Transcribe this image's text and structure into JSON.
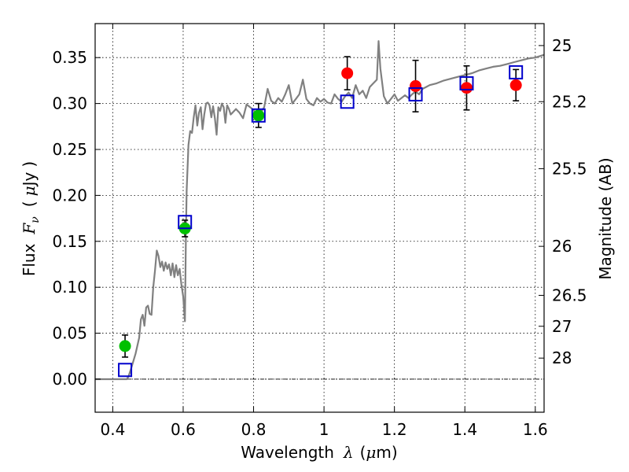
{
  "chart_data": {
    "type": "scatter",
    "title": "",
    "xlabel": {
      "prefix": "Wavelength",
      "symbol": "λ",
      "unit_open": "(",
      "unit_mu": "μ",
      "unit_rest": "m)"
    },
    "ylabel": {
      "prefix": "Flux",
      "symbol": "F",
      "subscript": "ν",
      "unit_open": "(",
      "unit_mu": "μ",
      "unit_rest": "Jy",
      "unit_close": ")"
    },
    "y2label": "Magnitude (AB)",
    "xlim": [
      0.35,
      1.625
    ],
    "ylim": [
      -0.036,
      0.387
    ],
    "grid": true,
    "x_ticks": [
      {
        "value": 0.4,
        "label": "0.4"
      },
      {
        "value": 0.6,
        "label": "0.6"
      },
      {
        "value": 0.8,
        "label": "0.8"
      },
      {
        "value": 1.0,
        "label": "1"
      },
      {
        "value": 1.2,
        "label": "1.2"
      },
      {
        "value": 1.4,
        "label": "1.4"
      },
      {
        "value": 1.6,
        "label": "1.6"
      }
    ],
    "y_ticks": [
      {
        "value": 0.0,
        "label": "0.00"
      },
      {
        "value": 0.05,
        "label": "0.05"
      },
      {
        "value": 0.1,
        "label": "0.10"
      },
      {
        "value": 0.15,
        "label": "0.15"
      },
      {
        "value": 0.2,
        "label": "0.20"
      },
      {
        "value": 0.25,
        "label": "0.25"
      },
      {
        "value": 0.3,
        "label": "0.30"
      },
      {
        "value": 0.35,
        "label": "0.35"
      }
    ],
    "y2_ticks": [
      {
        "magnitude": 25,
        "label": "25"
      },
      {
        "magnitude": 25.2,
        "label": "25.2"
      },
      {
        "magnitude": 25.5,
        "label": "25.5"
      },
      {
        "magnitude": 26,
        "label": "26"
      },
      {
        "magnitude": 26.5,
        "label": "26.5"
      },
      {
        "magnitude": 27,
        "label": "27"
      },
      {
        "magnitude": 28,
        "label": "28"
      }
    ],
    "model_spectrum": {
      "color": "#808080",
      "points": [
        [
          0.35,
          0.0
        ],
        [
          0.44,
          0.0
        ],
        [
          0.445,
          0.003
        ],
        [
          0.455,
          0.015
        ],
        [
          0.465,
          0.028
        ],
        [
          0.475,
          0.045
        ],
        [
          0.48,
          0.065
        ],
        [
          0.485,
          0.07
        ],
        [
          0.49,
          0.058
        ],
        [
          0.495,
          0.078
        ],
        [
          0.5,
          0.08
        ],
        [
          0.505,
          0.071
        ],
        [
          0.51,
          0.07
        ],
        [
          0.515,
          0.1
        ],
        [
          0.52,
          0.118
        ],
        [
          0.525,
          0.14
        ],
        [
          0.53,
          0.134
        ],
        [
          0.535,
          0.122
        ],
        [
          0.54,
          0.128
        ],
        [
          0.545,
          0.118
        ],
        [
          0.55,
          0.127
        ],
        [
          0.555,
          0.12
        ],
        [
          0.56,
          0.125
        ],
        [
          0.565,
          0.113
        ],
        [
          0.57,
          0.126
        ],
        [
          0.575,
          0.111
        ],
        [
          0.58,
          0.124
        ],
        [
          0.585,
          0.113
        ],
        [
          0.59,
          0.12
        ],
        [
          0.595,
          0.103
        ],
        [
          0.6,
          0.09
        ],
        [
          0.605,
          0.063
        ],
        [
          0.608,
          0.16
        ],
        [
          0.61,
          0.205
        ],
        [
          0.615,
          0.255
        ],
        [
          0.62,
          0.27
        ],
        [
          0.625,
          0.268
        ],
        [
          0.63,
          0.285
        ],
        [
          0.635,
          0.298
        ],
        [
          0.64,
          0.276
        ],
        [
          0.645,
          0.29
        ],
        [
          0.65,
          0.296
        ],
        [
          0.655,
          0.272
        ],
        [
          0.66,
          0.288
        ],
        [
          0.665,
          0.3
        ],
        [
          0.67,
          0.301
        ],
        [
          0.675,
          0.298
        ],
        [
          0.68,
          0.285
        ],
        [
          0.685,
          0.297
        ],
        [
          0.69,
          0.284
        ],
        [
          0.695,
          0.266
        ],
        [
          0.7,
          0.296
        ],
        [
          0.705,
          0.292
        ],
        [
          0.71,
          0.3
        ],
        [
          0.715,
          0.296
        ],
        [
          0.72,
          0.279
        ],
        [
          0.725,
          0.298
        ],
        [
          0.73,
          0.294
        ],
        [
          0.735,
          0.288
        ],
        [
          0.74,
          0.29
        ],
        [
          0.75,
          0.294
        ],
        [
          0.76,
          0.29
        ],
        [
          0.77,
          0.284
        ],
        [
          0.78,
          0.299
        ],
        [
          0.79,
          0.296
        ],
        [
          0.8,
          0.293
        ],
        [
          0.81,
          0.286
        ],
        [
          0.82,
          0.29
        ],
        [
          0.83,
          0.296
        ],
        [
          0.84,
          0.316
        ],
        [
          0.85,
          0.303
        ],
        [
          0.86,
          0.3
        ],
        [
          0.87,
          0.306
        ],
        [
          0.88,
          0.302
        ],
        [
          0.89,
          0.31
        ],
        [
          0.9,
          0.32
        ],
        [
          0.91,
          0.3
        ],
        [
          0.92,
          0.305
        ],
        [
          0.93,
          0.31
        ],
        [
          0.94,
          0.326
        ],
        [
          0.95,
          0.305
        ],
        [
          0.96,
          0.3
        ],
        [
          0.97,
          0.298
        ],
        [
          0.98,
          0.306
        ],
        [
          0.99,
          0.302
        ],
        [
          1.0,
          0.305
        ],
        [
          1.01,
          0.301
        ],
        [
          1.02,
          0.3
        ],
        [
          1.03,
          0.31
        ],
        [
          1.04,
          0.305
        ],
        [
          1.05,
          0.302
        ],
        [
          1.06,
          0.308
        ],
        [
          1.07,
          0.312
        ],
        [
          1.08,
          0.306
        ],
        [
          1.09,
          0.32
        ],
        [
          1.1,
          0.31
        ],
        [
          1.11,
          0.314
        ],
        [
          1.12,
          0.306
        ],
        [
          1.13,
          0.318
        ],
        [
          1.14,
          0.322
        ],
        [
          1.15,
          0.326
        ],
        [
          1.155,
          0.368
        ],
        [
          1.16,
          0.338
        ],
        [
          1.17,
          0.308
        ],
        [
          1.18,
          0.3
        ],
        [
          1.19,
          0.305
        ],
        [
          1.2,
          0.31
        ],
        [
          1.21,
          0.303
        ],
        [
          1.22,
          0.306
        ],
        [
          1.23,
          0.309
        ],
        [
          1.24,
          0.306
        ],
        [
          1.25,
          0.31
        ],
        [
          1.26,
          0.313
        ],
        [
          1.27,
          0.31
        ],
        [
          1.28,
          0.316
        ],
        [
          1.29,
          0.318
        ],
        [
          1.3,
          0.32
        ],
        [
          1.32,
          0.322
        ],
        [
          1.34,
          0.325
        ],
        [
          1.36,
          0.327
        ],
        [
          1.38,
          0.329
        ],
        [
          1.4,
          0.331
        ],
        [
          1.42,
          0.333
        ],
        [
          1.44,
          0.336
        ],
        [
          1.46,
          0.338
        ],
        [
          1.48,
          0.34
        ],
        [
          1.5,
          0.341
        ],
        [
          1.52,
          0.343
        ],
        [
          1.54,
          0.345
        ],
        [
          1.56,
          0.347
        ],
        [
          1.58,
          0.349
        ],
        [
          1.6,
          0.35
        ],
        [
          1.625,
          0.353
        ]
      ]
    },
    "series": [
      {
        "marker": "circle",
        "color": "#00c000",
        "points": [
          {
            "x": 0.435,
            "y": 0.036,
            "err": 0.012
          },
          {
            "x": 0.605,
            "y": 0.164,
            "err": 0.009
          },
          {
            "x": 0.814,
            "y": 0.287,
            "err": 0.013
          }
        ]
      },
      {
        "marker": "circle",
        "color": "#ff0000",
        "points": [
          {
            "x": 1.066,
            "y": 0.333,
            "err": 0.018
          },
          {
            "x": 1.26,
            "y": 0.319,
            "err": 0.028
          },
          {
            "x": 1.405,
            "y": 0.317,
            "err": 0.024
          },
          {
            "x": 1.545,
            "y": 0.32,
            "err": 0.017
          }
        ]
      },
      {
        "marker": "open-square",
        "color": "#0000cc",
        "points": [
          {
            "x": 0.435,
            "y": 0.01
          },
          {
            "x": 0.605,
            "y": 0.171
          },
          {
            "x": 0.814,
            "y": 0.287
          },
          {
            "x": 1.066,
            "y": 0.302
          },
          {
            "x": 1.26,
            "y": 0.31
          },
          {
            "x": 1.405,
            "y": 0.322
          },
          {
            "x": 1.545,
            "y": 0.334
          }
        ]
      }
    ]
  }
}
